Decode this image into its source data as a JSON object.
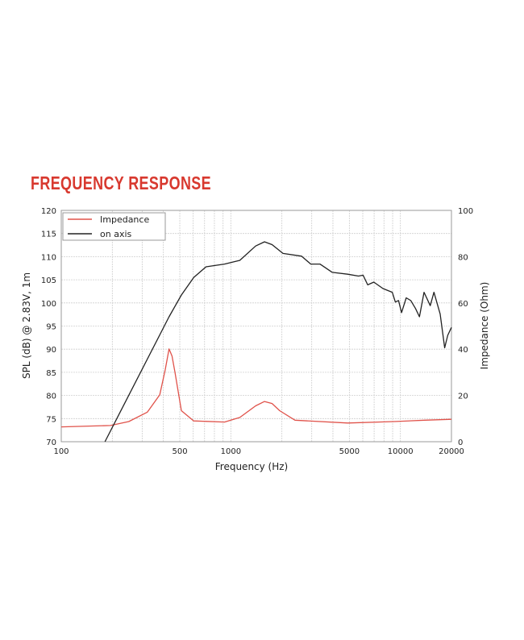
{
  "title": "FREQUENCY RESPONSE",
  "chart_data": {
    "type": "line",
    "title": "FREQUENCY RESPONSE",
    "xlabel": "Frequency (Hz)",
    "ylabel": "SPL (dB) @ 2.83V, 1m",
    "y2label": "Impedance (Ohm)",
    "x_scale": "log",
    "xlim": [
      100,
      20000
    ],
    "ylim": [
      70,
      120
    ],
    "y2lim": [
      0,
      100
    ],
    "x_ticks": [
      100,
      500,
      1000,
      5000,
      10000,
      20000
    ],
    "y_ticks": [
      70,
      75,
      80,
      85,
      90,
      95,
      100,
      105,
      110,
      115,
      120
    ],
    "y2_ticks": [
      0,
      20,
      40,
      60,
      80,
      100
    ],
    "grid": true,
    "legend": "top-left",
    "series": [
      {
        "name": "Impedance",
        "axis": "right",
        "color": "#e0524a",
        "x": [
          100,
          195,
          250,
          322,
          381,
          410,
          432,
          450,
          469,
          511,
          604,
          918,
          1130,
          1400,
          1580,
          1750,
          1940,
          2390,
          4886,
          9150,
          13900,
          20000
        ],
        "y": [
          6.4,
          7.0,
          8.7,
          12.8,
          20.3,
          31,
          40.1,
          37,
          29.7,
          13.4,
          9.0,
          8.5,
          10.5,
          15.5,
          17.4,
          16.5,
          13.4,
          9.3,
          8.1,
          8.7,
          9.3,
          9.7
        ]
      },
      {
        "name": "on axis",
        "axis": "left",
        "color": "#222222",
        "x": [
          181,
          432,
          511,
          604,
          714,
          918,
          1130,
          1400,
          1580,
          1750,
          2030,
          2610,
          2960,
          3355,
          3965,
          4886,
          5660,
          6025,
          6413,
          6970,
          7900,
          8960,
          9340,
          9750,
          10160,
          10820,
          11520,
          12270,
          12950,
          13780,
          14990,
          15770,
          17150,
          18250,
          19020,
          20000
        ],
        "y": [
          70,
          97,
          101.7,
          105.5,
          107.8,
          108.4,
          109.2,
          112.3,
          113.2,
          112.6,
          110.7,
          110.1,
          108.4,
          108.4,
          106.6,
          106.2,
          105.8,
          106,
          103.9,
          104.5,
          103.1,
          102.3,
          100.2,
          100.5,
          97.9,
          101.1,
          100.5,
          98.8,
          97,
          102.3,
          99.4,
          102.3,
          97.6,
          90.3,
          93,
          94.7
        ]
      }
    ]
  }
}
